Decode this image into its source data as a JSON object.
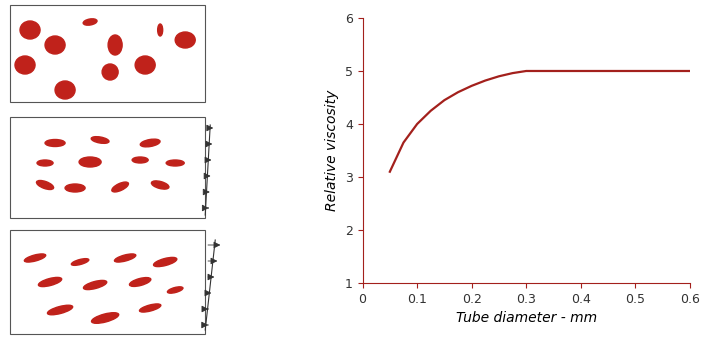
{
  "chart_data": {
    "type": "line",
    "x": [
      0.05,
      0.075,
      0.1,
      0.125,
      0.15,
      0.175,
      0.2,
      0.225,
      0.25,
      0.275,
      0.3,
      0.35,
      0.4,
      0.45,
      0.5,
      0.55,
      0.6
    ],
    "values": [
      3.1,
      3.65,
      4.0,
      4.25,
      4.45,
      4.6,
      4.72,
      4.82,
      4.9,
      4.96,
      5.0,
      5.0,
      5.0,
      5.0,
      5.0,
      5.0,
      5.0
    ],
    "color": "#a3201c",
    "x_label": "Tube diameter - mm",
    "y_label": "Relative viscosity",
    "xlim": [
      0,
      0.6
    ],
    "xticks": [
      0,
      0.1,
      0.2,
      0.3,
      0.4,
      0.5,
      0.6
    ],
    "ylim": [
      1,
      6
    ],
    "yticks": [
      1,
      2,
      3,
      4,
      5,
      6
    ],
    "grid": false
  }
}
